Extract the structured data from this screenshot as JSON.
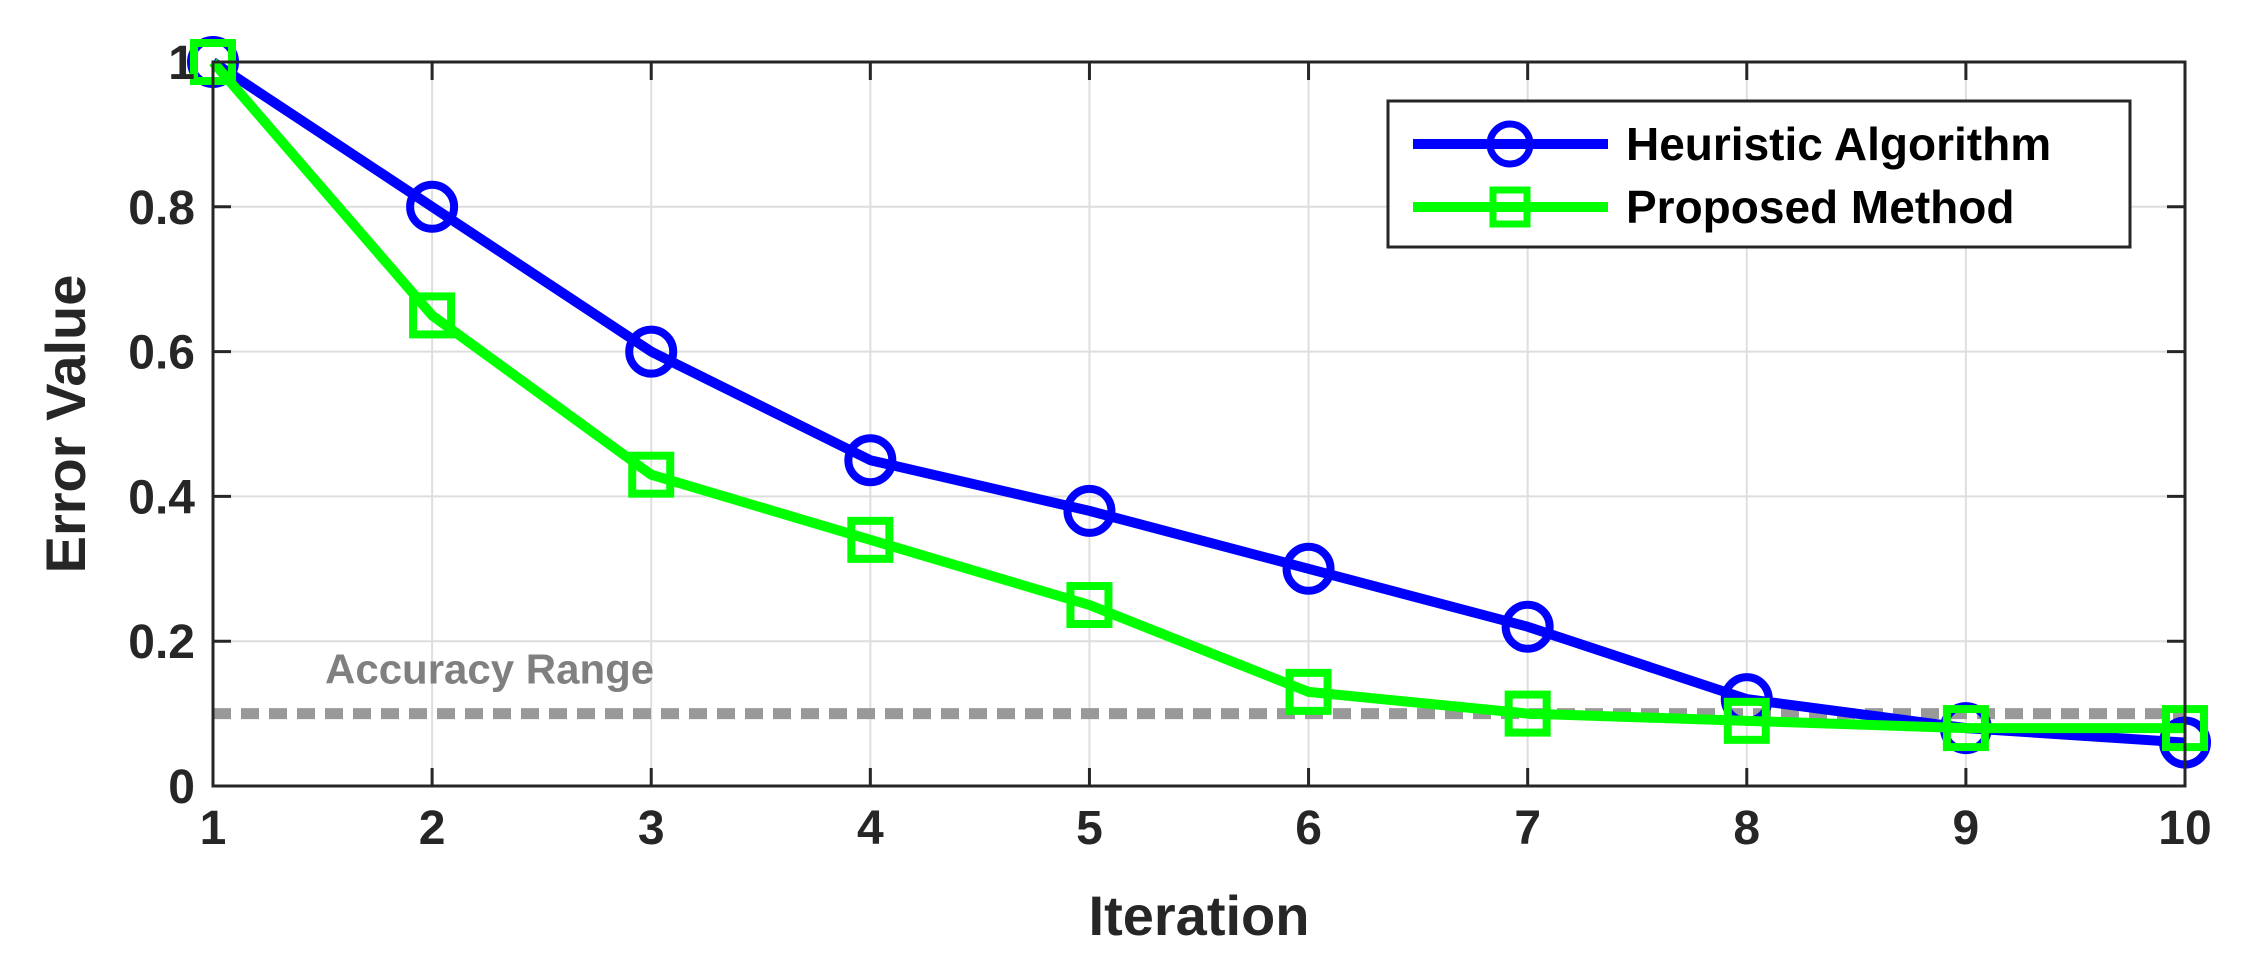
{
  "chart_data": {
    "type": "line",
    "title": "",
    "xlabel": "Iteration",
    "ylabel": "Error Value",
    "x": [
      1,
      2,
      3,
      4,
      5,
      6,
      7,
      8,
      9,
      10
    ],
    "xlim": [
      1,
      10
    ],
    "ylim": [
      0,
      1
    ],
    "xticks": [
      1,
      2,
      3,
      4,
      5,
      6,
      7,
      8,
      9,
      10
    ],
    "xtick_labels": [
      "1",
      "2",
      "3",
      "4",
      "5",
      "6",
      "7",
      "8",
      "9",
      "10"
    ],
    "yticks": [
      0,
      0.2,
      0.4,
      0.6,
      0.8,
      1
    ],
    "ytick_labels": [
      "0",
      "0.2",
      "0.4",
      "0.6",
      "0.8",
      "1"
    ],
    "grid": true,
    "legend_position": "top-right",
    "series": [
      {
        "name": "Heuristic Algorithm",
        "color": "#0000FF",
        "marker": "circle",
        "values": [
          1.0,
          0.8,
          0.6,
          0.45,
          0.38,
          0.3,
          0.22,
          0.12,
          0.08,
          0.06
        ]
      },
      {
        "name": "Proposed Method",
        "color": "#00FF00",
        "marker": "square",
        "values": [
          1.0,
          0.65,
          0.43,
          0.34,
          0.25,
          0.13,
          0.1,
          0.09,
          0.08,
          0.08
        ]
      }
    ],
    "reference_line": {
      "label": "Accuracy Range",
      "y": 0.1,
      "style": "dashed",
      "color": "#999999"
    }
  }
}
